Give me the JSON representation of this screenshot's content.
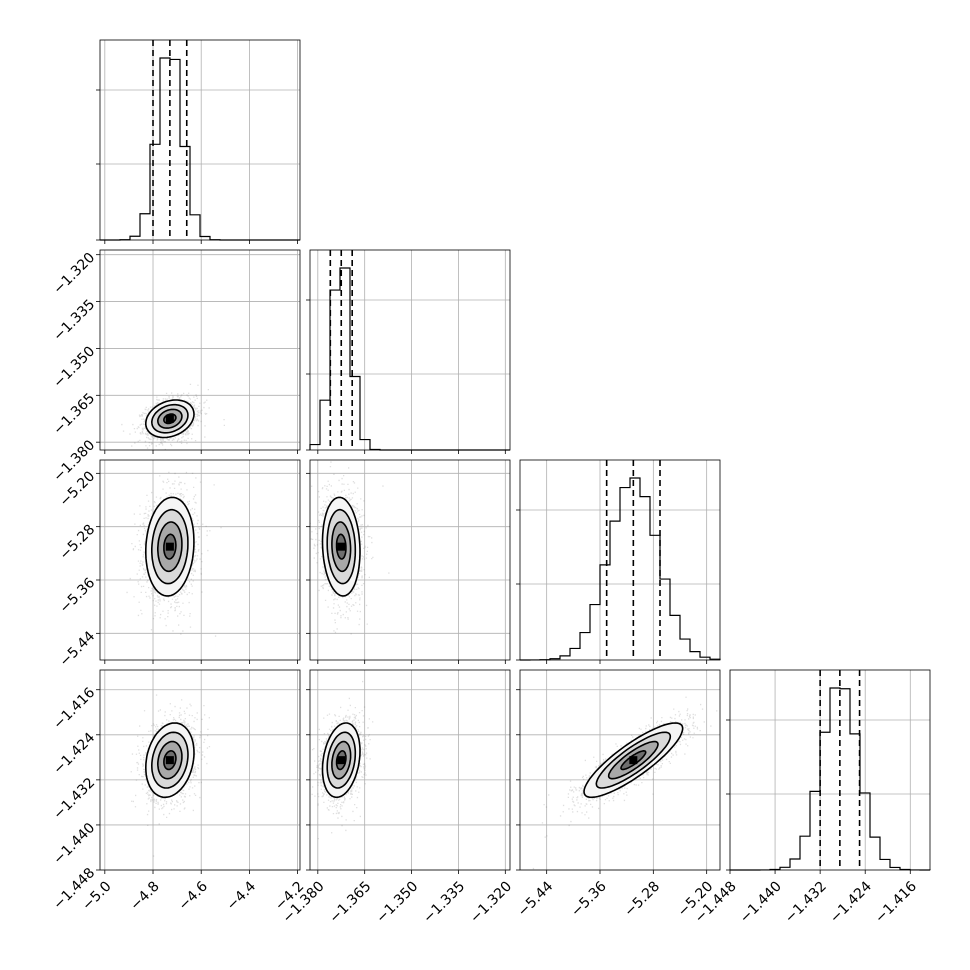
{
  "chart_data": {
    "type": "corner",
    "parameters": [
      {
        "id": "p0",
        "ticks": [
          "−5.0",
          "−4.8",
          "−4.6",
          "−4.4",
          "−4.2"
        ],
        "tick_values": [
          -5.0,
          -4.8,
          -4.6,
          -4.4,
          -4.2
        ],
        "range": [
          -5.02,
          -4.19
        ],
        "mean": -4.73,
        "sigma": 0.05,
        "quantiles": [
          -4.8,
          -4.73,
          -4.66
        ]
      },
      {
        "id": "p1",
        "ticks": [
          "−1.380",
          "−1.365",
          "−1.350",
          "−1.335",
          "−1.320"
        ],
        "tick_values": [
          -1.38,
          -1.365,
          -1.35,
          -1.335,
          -1.32
        ],
        "range": [
          -1.3825,
          -1.3185
        ],
        "mean": -1.3725,
        "sigma": 0.003,
        "quantiles": [
          -1.376,
          -1.3725,
          -1.369
        ]
      },
      {
        "id": "p2",
        "ticks": [
          "−5.44",
          "−5.36",
          "−5.28",
          "−5.20"
        ],
        "tick_values": [
          -5.44,
          -5.36,
          -5.28,
          -5.2
        ],
        "range": [
          -5.48,
          -5.18
        ],
        "mean": -5.31,
        "sigma": 0.037,
        "quantiles": [
          -5.35,
          -5.31,
          -5.27
        ]
      },
      {
        "id": "p3",
        "ticks": [
          "−1.448",
          "−1.440",
          "−1.432",
          "−1.424",
          "−1.416"
        ],
        "tick_values": [
          -1.448,
          -1.44,
          -1.432,
          -1.424,
          -1.416
        ],
        "range": [
          -1.448,
          -1.4125
        ],
        "mean": -1.4285,
        "sigma": 0.0033,
        "quantiles": [
          -1.432,
          -1.4285,
          -1.425
        ]
      }
    ],
    "pairs": [
      {
        "row": 1,
        "col": 0,
        "rho": 0.25
      },
      {
        "row": 2,
        "col": 0,
        "rho": 0.1
      },
      {
        "row": 2,
        "col": 1,
        "rho": -0.1
      },
      {
        "row": 3,
        "col": 0,
        "rho": 0.2
      },
      {
        "row": 3,
        "col": 1,
        "rho": 0.25
      },
      {
        "row": 3,
        "col": 2,
        "rho": 0.85
      }
    ],
    "contour_levels_sigma": [
      0.5,
      1.0,
      1.5,
      2.0
    ],
    "quantiles": [
      0.16,
      0.5,
      0.84
    ],
    "histogram_bins": 20,
    "grid": true
  }
}
